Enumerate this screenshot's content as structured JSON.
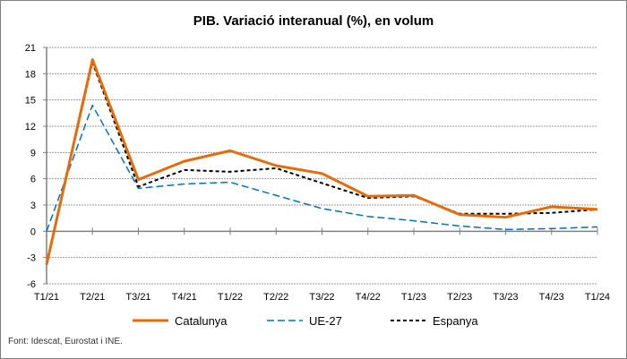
{
  "chart_data": {
    "type": "line",
    "title": "PIB. Variació interanual (%), en volum",
    "xlabel": "",
    "ylabel": "",
    "categories": [
      "T1/21",
      "T2/21",
      "T3/21",
      "T4/21",
      "T1/22",
      "T2/22",
      "T3/22",
      "T4/22",
      "T1/23",
      "T2/23",
      "T3/23",
      "T4/23",
      "T1/24"
    ],
    "ylim": [
      -6,
      21
    ],
    "yticks": [
      21,
      18,
      15,
      12,
      9,
      6,
      3,
      0,
      -3,
      -6
    ],
    "ytick_labels": [
      "21",
      "18",
      "15",
      "12",
      "9",
      "6",
      "3",
      "0",
      "-3",
      "-6"
    ],
    "grid": true,
    "legend_position": "bottom",
    "series": [
      {
        "name": "Catalunya",
        "color": "#E46C0A",
        "style": "solid",
        "values": [
          -3.8,
          19.6,
          5.9,
          8.0,
          9.2,
          7.5,
          6.6,
          4.0,
          4.1,
          1.9,
          1.6,
          2.8,
          2.5
        ]
      },
      {
        "name": "UE-27",
        "color": "#0070C0",
        "style": "dashed",
        "values": [
          0.0,
          14.4,
          4.9,
          5.4,
          5.6,
          4.1,
          2.6,
          1.7,
          1.2,
          0.6,
          0.2,
          0.3,
          0.5
        ]
      },
      {
        "name": "Espanya",
        "color": "#000000",
        "style": "dotted",
        "values": [
          -3.8,
          19.3,
          5.1,
          7.0,
          6.8,
          7.2,
          5.5,
          3.8,
          4.0,
          2.0,
          2.0,
          2.1,
          2.5
        ]
      }
    ],
    "source": "Font: Idescat, Eurostat i INE."
  }
}
